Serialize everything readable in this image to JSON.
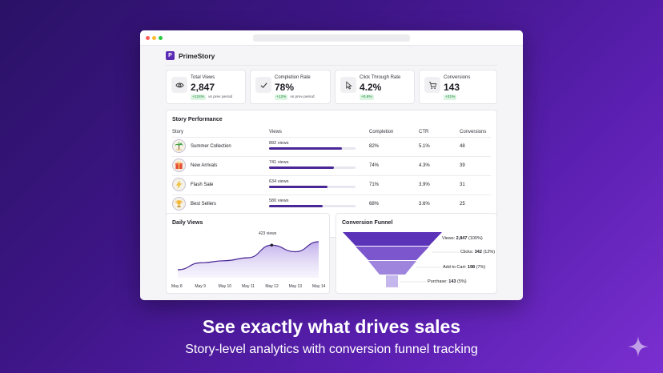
{
  "app": {
    "brand_name": "PrimeStory",
    "logo_letter": "P"
  },
  "kpis": [
    {
      "label": "Total Views",
      "value": "2,847",
      "delta": "+124%",
      "vs": "vs prev period",
      "icon": "eye-icon"
    },
    {
      "label": "Completion Rate",
      "value": "78%",
      "delta": "+12%",
      "vs": "vs prev period",
      "icon": "check-icon"
    },
    {
      "label": "Click Through Rate",
      "value": "4.2%",
      "delta": "+0.8%",
      "vs": "",
      "icon": "cursor-icon"
    },
    {
      "label": "Conversions",
      "value": "143",
      "delta": "+31%",
      "vs": "",
      "icon": "cart-icon"
    }
  ],
  "performance": {
    "title": "Story Performance",
    "headers": {
      "story": "Story",
      "views": "Views",
      "completion": "Completion",
      "ctr": "CTR",
      "conversions": "Conversions"
    },
    "rows": [
      {
        "name": "Summer Collection",
        "views_label": "892 views",
        "views_fraction": 0.84,
        "completion": "82%",
        "ctr": "5.1%",
        "conversions": "48",
        "icon": "palm-tree-icon"
      },
      {
        "name": "New Arrivals",
        "views_label": "741 views",
        "views_fraction": 0.75,
        "completion": "74%",
        "ctr": "4.3%",
        "conversions": "39",
        "icon": "gift-icon"
      },
      {
        "name": "Flash Sale",
        "views_label": "634 views",
        "views_fraction": 0.68,
        "completion": "71%",
        "ctr": "3.9%",
        "conversions": "31",
        "icon": "lightning-icon"
      },
      {
        "name": "Best Sellers",
        "views_label": "580 views",
        "views_fraction": 0.62,
        "completion": "68%",
        "ctr": "3.6%",
        "conversions": "25",
        "icon": "trophy-icon"
      }
    ]
  },
  "daily_views": {
    "title": "Daily Views",
    "tooltip": "423 views",
    "chart_data": {
      "type": "area",
      "categories": [
        "May 8",
        "May 9",
        "May 10",
        "May 11",
        "May 12",
        "May 13",
        "May 14"
      ],
      "values": [
        300,
        335,
        345,
        360,
        423,
        390,
        440
      ],
      "highlight_index": 4,
      "color": "#4a2796"
    }
  },
  "funnel": {
    "title": "Conversion Funnel",
    "stages": [
      {
        "name": "Views:",
        "value": "2,847",
        "pct": "(100%)"
      },
      {
        "name": "Clicks:",
        "value": "342",
        "pct": "(12%)"
      },
      {
        "name": "Add to Cart:",
        "value": "198",
        "pct": "(7%)"
      },
      {
        "name": "Purchase:",
        "value": "143",
        "pct": "(5%)"
      }
    ],
    "colors": [
      "#5b33b8",
      "#7b56cc",
      "#9f84de",
      "#c6b6ee"
    ]
  },
  "marketing": {
    "headline": "See exactly what drives sales",
    "subline": "Story-level analytics with conversion funnel tracking"
  }
}
